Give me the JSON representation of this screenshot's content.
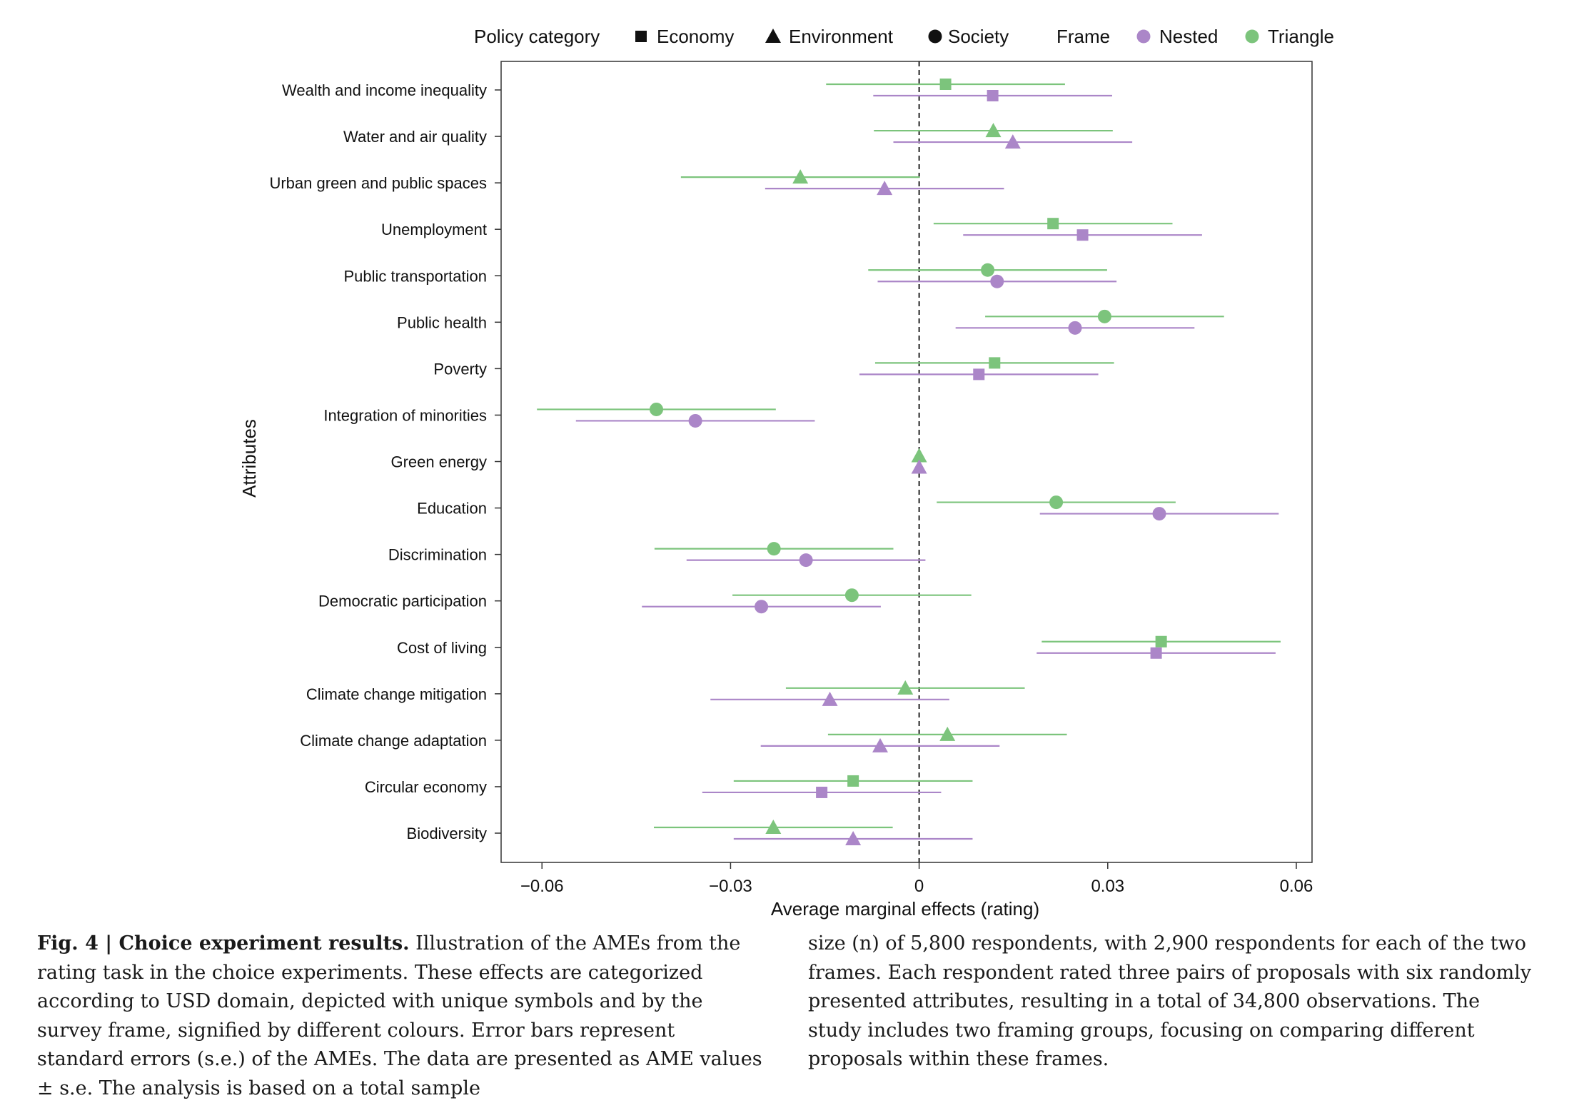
{
  "chart_data": {
    "type": "scatter",
    "variant": "dot-and-whisker",
    "xlabel": "Average marginal effects (rating)",
    "ylabel": "Attributes",
    "xlim": [
      -0.0665,
      0.0625
    ],
    "xticks": [
      -0.06,
      -0.03,
      0,
      0.03,
      0.06
    ],
    "xtick_labels": [
      "−0.06",
      "−0.03",
      "0",
      "0.03",
      "0.06"
    ],
    "reference_line": {
      "x": 0,
      "style": "dashed"
    },
    "grid": false,
    "legend": {
      "placement": "top",
      "category_title": "Policy category",
      "categories": [
        {
          "name": "Economy",
          "shape": "square"
        },
        {
          "name": "Environment",
          "shape": "triangle"
        },
        {
          "name": "Society",
          "shape": "circle"
        }
      ],
      "frame_title": "Frame",
      "frames": [
        {
          "name": "Nested",
          "color": "#ab86c8"
        },
        {
          "name": "Triangle",
          "color": "#7cc47c"
        }
      ]
    },
    "attributes": [
      {
        "name": "Wealth and income inequality",
        "category": "Economy",
        "triangle": {
          "ame": 0.0042,
          "lo": -0.0148,
          "hi": 0.0232
        },
        "nested": {
          "ame": 0.0117,
          "lo": -0.0073,
          "hi": 0.0307
        }
      },
      {
        "name": "Water and air quality",
        "category": "Environment",
        "triangle": {
          "ame": 0.0118,
          "lo": -0.0072,
          "hi": 0.0308
        },
        "nested": {
          "ame": 0.0149,
          "lo": -0.0041,
          "hi": 0.0339
        }
      },
      {
        "name": "Urban green and public spaces",
        "category": "Environment",
        "triangle": {
          "ame": -0.0189,
          "lo": -0.0379,
          "hi": 0.0001
        },
        "nested": {
          "ame": -0.0055,
          "lo": -0.0245,
          "hi": 0.0135
        }
      },
      {
        "name": "Unemployment",
        "category": "Economy",
        "triangle": {
          "ame": 0.0213,
          "lo": 0.0023,
          "hi": 0.0403
        },
        "nested": {
          "ame": 0.026,
          "lo": 0.007,
          "hi": 0.045
        }
      },
      {
        "name": "Public transportation",
        "category": "Society",
        "triangle": {
          "ame": 0.0109,
          "lo": -0.0081,
          "hi": 0.0299
        },
        "nested": {
          "ame": 0.0124,
          "lo": -0.0066,
          "hi": 0.0314
        }
      },
      {
        "name": "Public health",
        "category": "Society",
        "triangle": {
          "ame": 0.0295,
          "lo": 0.0105,
          "hi": 0.0485
        },
        "nested": {
          "ame": 0.0248,
          "lo": 0.0058,
          "hi": 0.0438
        }
      },
      {
        "name": "Poverty",
        "category": "Economy",
        "triangle": {
          "ame": 0.012,
          "lo": -0.007,
          "hi": 0.031
        },
        "nested": {
          "ame": 0.0095,
          "lo": -0.0095,
          "hi": 0.0285
        }
      },
      {
        "name": "Integration of minorities",
        "category": "Society",
        "triangle": {
          "ame": -0.0418,
          "lo": -0.0608,
          "hi": -0.0228
        },
        "nested": {
          "ame": -0.0356,
          "lo": -0.0546,
          "hi": -0.0166
        }
      },
      {
        "name": "Green energy",
        "category": "Environment",
        "triangle": {
          "ame": 0,
          "lo": 0,
          "hi": 0
        },
        "nested": {
          "ame": 0,
          "lo": 0,
          "hi": 0
        }
      },
      {
        "name": "Education",
        "category": "Society",
        "triangle": {
          "ame": 0.0218,
          "lo": 0.0028,
          "hi": 0.0408
        },
        "nested": {
          "ame": 0.0382,
          "lo": 0.0192,
          "hi": 0.0572
        }
      },
      {
        "name": "Discrimination",
        "category": "Society",
        "triangle": {
          "ame": -0.0231,
          "lo": -0.0421,
          "hi": -0.0041
        },
        "nested": {
          "ame": -0.018,
          "lo": -0.037,
          "hi": 0.001
        }
      },
      {
        "name": "Democratic participation",
        "category": "Society",
        "triangle": {
          "ame": -0.0107,
          "lo": -0.0297,
          "hi": 0.0083
        },
        "nested": {
          "ame": -0.0251,
          "lo": -0.0441,
          "hi": -0.0061
        }
      },
      {
        "name": "Cost of living",
        "category": "Economy",
        "triangle": {
          "ame": 0.0385,
          "lo": 0.0195,
          "hi": 0.0575
        },
        "nested": {
          "ame": 0.0377,
          "lo": 0.0187,
          "hi": 0.0567
        }
      },
      {
        "name": "Climate change mitigation",
        "category": "Environment",
        "triangle": {
          "ame": -0.0022,
          "lo": -0.0212,
          "hi": 0.0168
        },
        "nested": {
          "ame": -0.0142,
          "lo": -0.0332,
          "hi": 0.0048
        }
      },
      {
        "name": "Climate change adaptation",
        "category": "Environment",
        "triangle": {
          "ame": 0.0045,
          "lo": -0.0145,
          "hi": 0.0235
        },
        "nested": {
          "ame": -0.0062,
          "lo": -0.0252,
          "hi": 0.0128
        }
      },
      {
        "name": "Circular economy",
        "category": "Economy",
        "triangle": {
          "ame": -0.0105,
          "lo": -0.0295,
          "hi": 0.0085
        },
        "nested": {
          "ame": -0.0155,
          "lo": -0.0345,
          "hi": 0.0035
        }
      },
      {
        "name": "Biodiversity",
        "category": "Environment",
        "triangle": {
          "ame": -0.0232,
          "lo": -0.0422,
          "hi": -0.0042
        },
        "nested": {
          "ame": -0.0105,
          "lo": -0.0295,
          "hi": 0.0085
        }
      }
    ]
  },
  "caption": {
    "figure_label": "Fig. 4 | Choice experiment results.",
    "left_text": " Illustration of the AMEs from the rating task in the choice experiments. These effects are categorized according to USD domain, depicted with unique symbols and by the survey frame, signified by different colours. Error bars represent standard errors (s.e.) of the AMEs. The data are presented as AME values ± s.e. The analysis is based on a total sample",
    "right_text": "size (n) of 5,800 respondents, with 2,900 respondents for each of the two frames. Each respondent rated three pairs of proposals with six randomly presented attributes, resulting in a total of 34,800 observations. The study includes two framing groups, focusing on comparing different proposals within these frames."
  }
}
